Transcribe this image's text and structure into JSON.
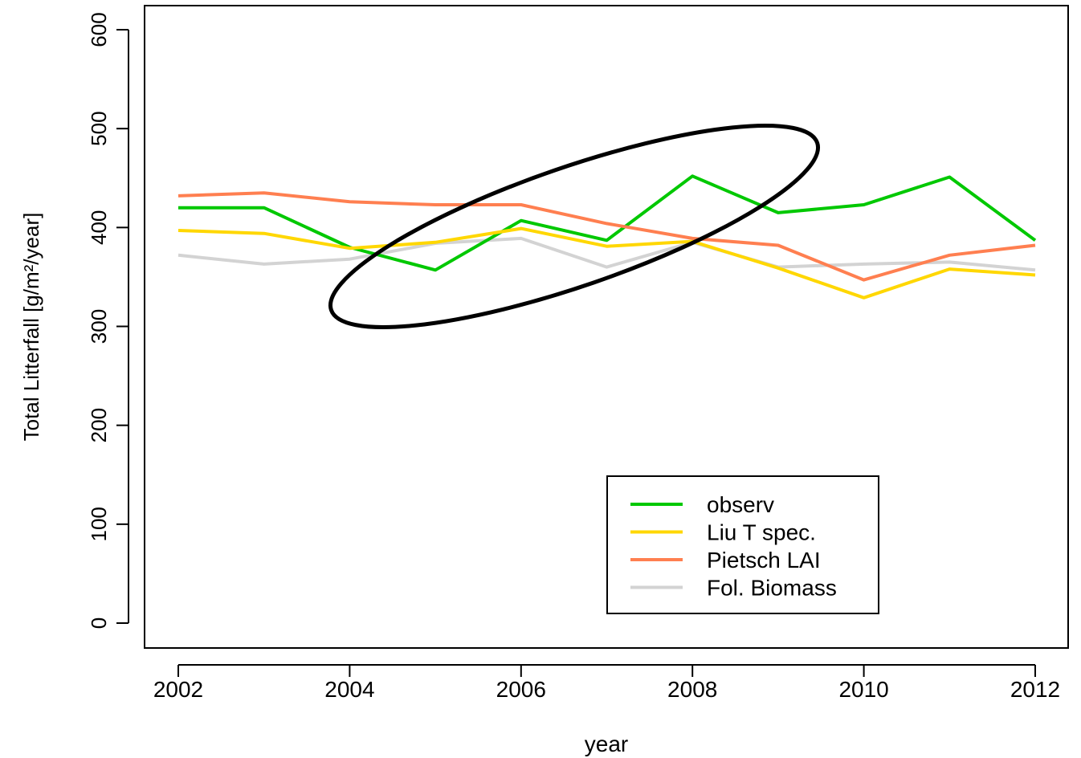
{
  "chart_data": {
    "type": "line",
    "xlabel": "year",
    "ylabel": "Total Litterfall [g/m²/year]",
    "xlim": [
      2002,
      2012
    ],
    "ylim": [
      0,
      600
    ],
    "x_ticks": [
      "2002",
      "2004",
      "2006",
      "2008",
      "2010",
      "2012"
    ],
    "y_ticks": [
      "0",
      "100",
      "200",
      "300",
      "400",
      "500",
      "600"
    ],
    "x": [
      2002,
      2003,
      2004,
      2005,
      2006,
      2007,
      2008,
      2009,
      2010,
      2011,
      2012
    ],
    "series": [
      {
        "name": "observ",
        "color": "#00c800",
        "values": [
          420,
          420,
          380,
          357,
          407,
          387,
          452,
          415,
          423,
          451,
          387
        ]
      },
      {
        "name": "Liu T spec.",
        "color": "#ffd700",
        "values": [
          397,
          394,
          379,
          385,
          399,
          381,
          386,
          359,
          329,
          358,
          352
        ]
      },
      {
        "name": "Pietsch LAI",
        "color": "#ff7f50",
        "values": [
          432,
          435,
          426,
          423,
          423,
          404,
          389,
          382,
          347,
          372,
          382
        ]
      },
      {
        "name": "Fol. Biomass",
        "color": "#d3d3d3",
        "values": [
          372,
          363,
          368,
          384,
          389,
          360,
          385,
          360,
          363,
          365,
          357
        ]
      }
    ],
    "grid": false,
    "legend_position": "bottom-right",
    "annotations": [
      {
        "type": "ellipse",
        "description": "black ellipse highlighting 2004–2009 region"
      }
    ]
  }
}
